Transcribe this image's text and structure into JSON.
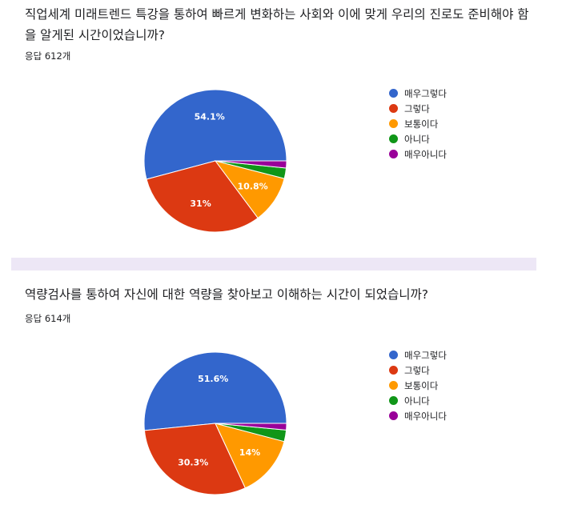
{
  "chart_data": [
    {
      "type": "pie",
      "question": "직업세계 미래트렌드 특강을 통하여 빠르게 변화하는 사회와 이에 맞게 우리의 진로도 준비해야 함을 알게된 시간이었습니까?",
      "response_count": "응답 612개",
      "categories": [
        "매우그렇다",
        "그렇다",
        "보통이다",
        "아니다",
        "매우아니다"
      ],
      "values": [
        54.1,
        31,
        10.8,
        2.4,
        1.6
      ],
      "labels": [
        "54.1%",
        "31%",
        "10.8%",
        "",
        ""
      ],
      "colors": [
        "#3366cc",
        "#dc3912",
        "#ff9900",
        "#109618",
        "#990099"
      ],
      "legend_position": "right"
    },
    {
      "type": "pie",
      "question": "역량검사를 통하여 자신에 대한 역량을 찾아보고 이해하는 시간이 되었습니까?",
      "response_count": "응답 614개",
      "categories": [
        "매우그렇다",
        "그렇다",
        "보통이다",
        "아니다",
        "매우아니다"
      ],
      "values": [
        51.6,
        30.3,
        14,
        2.6,
        1.5
      ],
      "labels": [
        "51.6%",
        "30.3%",
        "14%",
        "",
        ""
      ],
      "colors": [
        "#3366cc",
        "#dc3912",
        "#ff9900",
        "#109618",
        "#990099"
      ],
      "legend_position": "right"
    }
  ]
}
